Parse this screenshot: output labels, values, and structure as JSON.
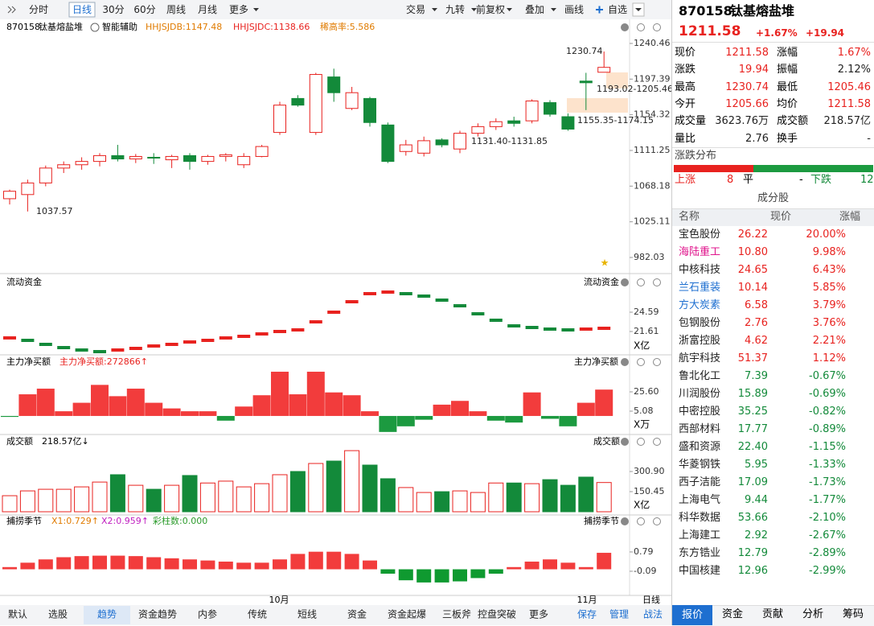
{
  "toolbar": {
    "left": [
      "分时",
      "日线",
      "30分",
      "60分",
      "周线",
      "月线",
      "更多"
    ],
    "selected": "日线",
    "right": [
      "交易",
      "九转",
      "前复权",
      "叠加",
      "画线",
      "自选"
    ]
  },
  "indicator": {
    "code": "870158",
    "name": "钛基熔盐堆",
    "assist": "智能辅助",
    "items": [
      {
        "text": "HHJSJDB:1147.48",
        "color": "#e07b00"
      },
      {
        "text": "HHJSJDC:1138.66",
        "color": "#e8221f"
      },
      {
        "text": "稀高率:5.586",
        "color": "#e07b00"
      }
    ]
  },
  "price_chart": {
    "ylim": [
      962.6,
      1265.7
    ],
    "yticks": [
      1240.46,
      1197.39,
      1154.32,
      1111.25,
      1068.18,
      1025.11,
      982.03
    ],
    "annotations": [
      "1230.74",
      "1193.02-1205.46",
      "1155.35-1174.15",
      "1131.40-1131.85",
      "1037.57"
    ],
    "candles": [
      {
        "open": 1053,
        "high": 1064,
        "low": 1046,
        "close": 1062
      },
      {
        "open": 1058,
        "high": 1076,
        "low": 1037.57,
        "close": 1072
      },
      {
        "open": 1072,
        "high": 1093,
        "low": 1068,
        "close": 1090
      },
      {
        "open": 1090,
        "high": 1098,
        "low": 1084,
        "close": 1094
      },
      {
        "open": 1094,
        "high": 1103,
        "low": 1088,
        "close": 1098
      },
      {
        "open": 1098,
        "high": 1108,
        "low": 1092,
        "close": 1105
      },
      {
        "open": 1105,
        "high": 1118,
        "low": 1098,
        "close": 1101
      },
      {
        "open": 1101,
        "high": 1107,
        "low": 1096,
        "close": 1104
      },
      {
        "open": 1103,
        "high": 1108,
        "low": 1095,
        "close": 1102
      },
      {
        "open": 1100,
        "high": 1106,
        "low": 1090,
        "close": 1104
      },
      {
        "open": 1105,
        "high": 1108,
        "low": 1088,
        "close": 1098
      },
      {
        "open": 1098,
        "high": 1106,
        "low": 1094,
        "close": 1104
      },
      {
        "open": 1104,
        "high": 1108,
        "low": 1098,
        "close": 1106
      },
      {
        "open": 1094,
        "high": 1108,
        "low": 1090,
        "close": 1104
      },
      {
        "open": 1104,
        "high": 1118,
        "low": 1103,
        "close": 1116
      },
      {
        "open": 1133,
        "high": 1170,
        "low": 1130,
        "close": 1166
      },
      {
        "open": 1174,
        "high": 1178,
        "low": 1164,
        "close": 1166
      },
      {
        "open": 1133,
        "high": 1205,
        "low": 1130,
        "close": 1203
      },
      {
        "open": 1200,
        "high": 1210,
        "low": 1170,
        "close": 1181
      },
      {
        "open": 1162,
        "high": 1188,
        "low": 1160,
        "close": 1181
      },
      {
        "open": 1174,
        "high": 1176,
        "low": 1140,
        "close": 1145
      },
      {
        "open": 1142,
        "high": 1145,
        "low": 1096,
        "close": 1098
      },
      {
        "open": 1110,
        "high": 1124,
        "low": 1105,
        "close": 1118
      },
      {
        "open": 1108,
        "high": 1128,
        "low": 1104,
        "close": 1123
      },
      {
        "open": 1124,
        "high": 1126,
        "low": 1115,
        "close": 1118
      },
      {
        "open": 1113,
        "high": 1135,
        "low": 1108,
        "close": 1132
      },
      {
        "open": 1132,
        "high": 1144,
        "low": 1128,
        "close": 1140
      },
      {
        "open": 1140,
        "high": 1150,
        "low": 1136,
        "close": 1146
      },
      {
        "open": 1147,
        "high": 1152,
        "low": 1140,
        "close": 1144
      },
      {
        "open": 1147,
        "high": 1173,
        "low": 1144,
        "close": 1171
      },
      {
        "open": 1169,
        "high": 1172,
        "low": 1152,
        "close": 1155
      },
      {
        "open": 1152,
        "high": 1156,
        "low": 1135,
        "close": 1137
      },
      {
        "open": 1195,
        "high": 1205,
        "low": 1160,
        "close": 1193
      },
      {
        "open": 1205.66,
        "high": 1230.74,
        "low": 1205.46,
        "close": 1211.58
      }
    ]
  },
  "fund_chart": {
    "title": "流动资金",
    "ylim": [
      18.13,
      29.93
    ],
    "yticks": [
      24.59,
      21.61
    ],
    "unit": "X亿",
    "values": [
      20.62,
      20.24,
      19.62,
      19.12,
      18.75,
      18.5,
      18.75,
      19.0,
      19.37,
      19.62,
      19.99,
      20.24,
      20.62,
      20.86,
      21.24,
      21.61,
      21.86,
      23.1,
      24.59,
      26.2,
      27.45,
      27.7,
      27.45,
      27.07,
      26.45,
      25.58,
      24.34,
      23.35,
      22.48,
      22.23,
      21.98,
      21.86,
      21.98,
      22.11
    ]
  },
  "net_chart": {
    "title": "主力净买额",
    "legend": "主力净买额:272866↑",
    "ylim": [
      -19.7,
      61.5
    ],
    "yticks": [
      {
        "value": 25.6,
        "label": "25.60"
      },
      5.08
    ],
    "unit": "X万",
    "values": [
      -1,
      23,
      29,
      5,
      14,
      33,
      21,
      29,
      14,
      8,
      5,
      5,
      -5,
      10,
      22,
      47,
      23,
      47,
      25,
      22,
      5,
      -17,
      -11,
      -4,
      12,
      16,
      5,
      -5,
      -7,
      25,
      -3,
      -11,
      14,
      28
    ]
  },
  "volume_chart": {
    "title": "成交额",
    "legend": "218.57亿↓",
    "ylim": [
      0,
      457.4
    ],
    "yticks": [
      {
        "value": 300.9,
        "label": "300.90"
      },
      150.45
    ],
    "unit": "X亿",
    "values": [
      120,
      156,
      168,
      168,
      186,
      222,
      277,
      198,
      168,
      198,
      271,
      215,
      229,
      186,
      210,
      277,
      301,
      361,
      379,
      457,
      349,
      247,
      181,
      144,
      150,
      156,
      144,
      215,
      215,
      210,
      240,
      198,
      259,
      218.57
    ]
  },
  "season_chart": {
    "title": "捕捞季节",
    "legend": [
      {
        "text": "X1:0.729↑",
        "color": "#e07b00"
      },
      {
        "text": "X2:0.959↑",
        "color": "#c020c0"
      },
      {
        "text": "彩柱数:0.000",
        "color": "#2a9a2a"
      }
    ],
    "ylim": [
      -1.19,
      2.4
    ],
    "yticks": [
      0.79,
      -0.09
    ],
    "values": [
      0.1,
      0.3,
      0.45,
      0.55,
      0.6,
      0.62,
      0.62,
      0.6,
      0.55,
      0.5,
      0.45,
      0.4,
      0.35,
      0.3,
      0.3,
      0.45,
      0.7,
      0.8,
      0.8,
      0.7,
      0.4,
      -0.2,
      -0.5,
      -0.6,
      -0.6,
      -0.55,
      -0.4,
      -0.2,
      0.1,
      0.35,
      0.45,
      0.3,
      0.1,
      0.75
    ]
  },
  "date_axis": [
    "10月",
    "11月"
  ],
  "period": "日线",
  "bottom_tabs": [
    "默认",
    "选股",
    "趋势",
    "资金趋势",
    "内参",
    "传统",
    "短线",
    "资金",
    "资金起爆",
    "三板斧",
    "控盘突破",
    "更多",
    "保存",
    "管理",
    "战法"
  ],
  "side": {
    "code": "870158",
    "name": "钛基熔盐堆",
    "price": "1211.58",
    "pct": "+1.67%",
    "chg": "+19.94",
    "quote": [
      [
        {
          "l": "现价",
          "v": "1211.58",
          "c": "#e8221f"
        },
        {
          "l": "涨幅",
          "v": "1.67%",
          "c": "#e8221f"
        }
      ],
      [
        {
          "l": "涨跌",
          "v": "19.94",
          "c": "#e8221f"
        },
        {
          "l": "振幅",
          "v": "2.12%",
          "c": "#222"
        }
      ],
      [
        {
          "l": "最高",
          "v": "1230.74",
          "c": "#e8221f"
        },
        {
          "l": "最低",
          "v": "1205.46",
          "c": "#e8221f"
        }
      ],
      [
        {
          "l": "今开",
          "v": "1205.66",
          "c": "#e8221f"
        },
        {
          "l": "均价",
          "v": "1211.58",
          "c": "#e8221f"
        }
      ],
      [
        {
          "l": "成交量",
          "v": "3623.76万",
          "c": "#222"
        },
        {
          "l": "成交额",
          "v": "218.57亿",
          "c": "#222"
        }
      ],
      [
        {
          "l": "量比",
          "v": "2.76",
          "c": "#222"
        },
        {
          "l": "换手",
          "v": "-",
          "c": "#222"
        }
      ]
    ],
    "dist_title": "涨跌分布",
    "up_label": "上涨",
    "up": "8",
    "flat_label": "平",
    "flat": "-",
    "down_label": "下跌",
    "down": "12",
    "comp_title": "成分股",
    "comp_header": [
      "名称",
      "现价",
      "涨幅"
    ],
    "comps": [
      {
        "n": "宝色股份",
        "p": "26.22",
        "c": "20.00%"
      },
      {
        "n": "海陆重工",
        "p": "10.80",
        "c": "9.98%",
        "color": "#e0148c"
      },
      {
        "n": "中核科技",
        "p": "24.65",
        "c": "6.43%"
      },
      {
        "n": "兰石重装",
        "p": "10.14",
        "c": "5.85%",
        "color": "#1e6fd0"
      },
      {
        "n": "方大炭素",
        "p": "6.58",
        "c": "3.79%",
        "color": "#1e6fd0"
      },
      {
        "n": "包钢股份",
        "p": "2.76",
        "c": "3.76%"
      },
      {
        "n": "浙富控股",
        "p": "4.62",
        "c": "2.21%"
      },
      {
        "n": "航宇科技",
        "p": "51.37",
        "c": "1.12%"
      },
      {
        "n": "鲁北化工",
        "p": "7.39",
        "c": "-0.67%"
      },
      {
        "n": "川润股份",
        "p": "15.89",
        "c": "-0.69%"
      },
      {
        "n": "中密控股",
        "p": "35.25",
        "c": "-0.82%"
      },
      {
        "n": "西部材料",
        "p": "17.77",
        "c": "-0.89%"
      },
      {
        "n": "盛和资源",
        "p": "22.40",
        "c": "-1.15%"
      },
      {
        "n": "华菱钢铁",
        "p": "5.95",
        "c": "-1.33%"
      },
      {
        "n": "西子洁能",
        "p": "17.09",
        "c": "-1.73%"
      },
      {
        "n": "上海电气",
        "p": "9.44",
        "c": "-1.77%"
      },
      {
        "n": "科华数据",
        "p": "53.66",
        "c": "-2.10%"
      },
      {
        "n": "上海建工",
        "p": "2.92",
        "c": "-2.67%"
      },
      {
        "n": "东方锆业",
        "p": "12.79",
        "c": "-2.89%"
      },
      {
        "n": "中国核建",
        "p": "12.96",
        "c": "-2.99%"
      }
    ],
    "tabs": [
      "报价",
      "资金",
      "贡献",
      "分析",
      "筹码"
    ]
  }
}
